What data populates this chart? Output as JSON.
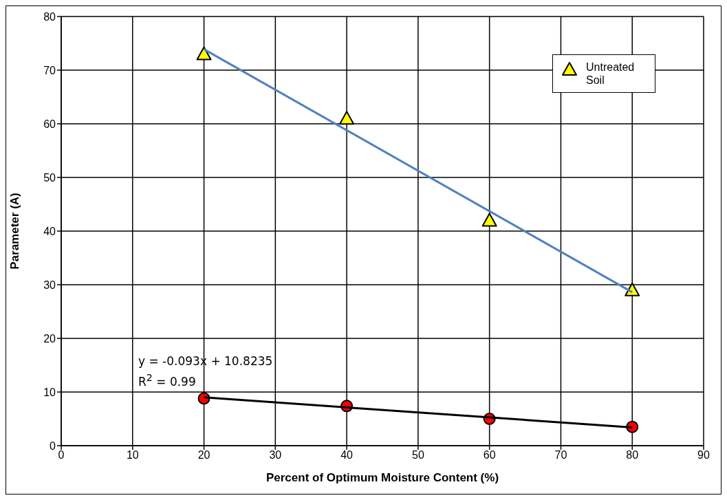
{
  "chart_data": {
    "type": "scatter",
    "xlabel": "Percent of Optimum Moisture Content (%)",
    "ylabel": "Parameter (A)",
    "xlim": [
      0,
      90
    ],
    "xticks": [
      0,
      10,
      20,
      30,
      40,
      50,
      60,
      70,
      80,
      90
    ],
    "ylim": [
      0,
      80
    ],
    "yticks": [
      0,
      10,
      20,
      30,
      40,
      50,
      60,
      70,
      80
    ],
    "grid": true,
    "legend": "top right",
    "annotations": [
      "y = -0.093x + 10.8235",
      "R$^{2}$ = 0.99"
    ],
    "series": [
      {
        "name": "Untreated Soil",
        "marker": "triangle",
        "color": "#ffff00",
        "x": [
          20,
          40,
          60,
          80
        ],
        "values": [
          73,
          61,
          42,
          29
        ]
      },
      {
        "type": "line",
        "marker": "none",
        "color": "#4f81bd",
        "x": [
          20,
          80
        ],
        "values": [
          73.9,
          28.6
        ]
      },
      {
        "marker": "circle",
        "color": "#ff0000",
        "x": [
          20,
          40,
          60,
          80
        ],
        "values": [
          8.8,
          7.4,
          5.0,
          3.5
        ]
      },
      {
        "type": "line",
        "marker": "none",
        "color": "#000000",
        "x": [
          20,
          80
        ],
        "values": [
          9.0,
          3.4
        ]
      }
    ]
  }
}
